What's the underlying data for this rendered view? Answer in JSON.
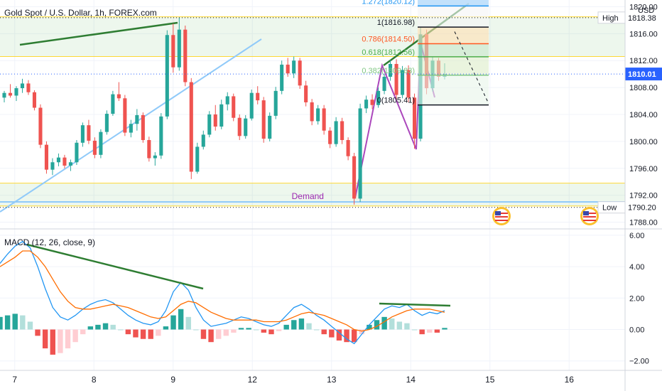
{
  "header": {
    "title": "Gold Spot / U.S. Dollar, 1h, FOREX.com"
  },
  "chart_data": [
    {
      "type": "candlestick",
      "title": "Gold Spot / U.S. Dollar, 1h, FOREX.com",
      "y_axis": {
        "ticks": [
          "1820.00",
          "1816.00",
          "1812.00",
          "1808.00",
          "1804.00",
          "1800.00",
          "1796.00",
          "1792.00",
          "1788.00"
        ],
        "tick_values": [
          1820,
          1816,
          1812,
          1808,
          1804,
          1800,
          1796,
          1792,
          1788
        ],
        "range": [
          1787,
          1821
        ],
        "currency_label": "USD"
      },
      "x_axis": {
        "labels": [
          "7",
          "8",
          "9",
          "12",
          "13",
          "14",
          "15",
          "16"
        ],
        "positions": [
          0.5,
          1.5,
          2.5,
          3.5,
          4.5,
          5.5,
          6.5,
          7.5
        ]
      },
      "price_labels": [
        {
          "name": "High",
          "value": "1818.38",
          "y": 1818.38
        },
        {
          "name": "",
          "value": "1810.01",
          "y": 1810.01,
          "current": true
        },
        {
          "name": "Low",
          "value": "1790.20",
          "y": 1790.2
        }
      ],
      "fibonacci": [
        {
          "level": "1.272",
          "price": 1820.12,
          "label": "1.272(1820.12)",
          "color": "#2196f3"
        },
        {
          "level": "1",
          "price": 1816.98,
          "label": "1(1816.98)",
          "color": "#131722"
        },
        {
          "level": "0.786",
          "price": 1814.5,
          "label": "0.786(1814.50)",
          "color": "#ff5722"
        },
        {
          "level": "0.618",
          "price": 1812.56,
          "label": "0.618(1812.56)",
          "color": "#4caf50"
        },
        {
          "level": "0.382",
          "price": 1809.83,
          "label": "0.382(1809.83)",
          "color": "#81c784"
        },
        {
          "level": "0",
          "price": 1805.41,
          "label": "0(1805.41)",
          "color": "#131722"
        }
      ],
      "zones": [
        {
          "name": "",
          "top": 1818.5,
          "bottom": 1812.6,
          "color": "#4caf50"
        },
        {
          "name": "Demand",
          "top": 1793.8,
          "bottom": 1790.4,
          "color": "#4caf50"
        }
      ],
      "annotations": [
        {
          "text": "Demand",
          "x": 4.2,
          "y": 1791.2,
          "color": "#9c27b0"
        }
      ],
      "candles_ohlc": [
        [
          1806.5,
          1807.5,
          1805.8,
          1807.2
        ],
        [
          1807.2,
          1808.5,
          1806.5,
          1806.8
        ],
        [
          1806.8,
          1808.2,
          1806.0,
          1807.9
        ],
        [
          1807.9,
          1809.3,
          1807.2,
          1808.6
        ],
        [
          1808.6,
          1809.1,
          1806.9,
          1807.3
        ],
        [
          1807.3,
          1807.6,
          1804.6,
          1805.0
        ],
        [
          1805.0,
          1805.5,
          1799.0,
          1799.5
        ],
        [
          1799.5,
          1800.0,
          1795.2,
          1795.8
        ],
        [
          1795.8,
          1797.5,
          1795.0,
          1796.9
        ],
        [
          1796.9,
          1798.2,
          1796.3,
          1797.6
        ],
        [
          1797.6,
          1798.0,
          1796.0,
          1796.4
        ],
        [
          1796.4,
          1797.3,
          1795.6,
          1796.9
        ],
        [
          1796.9,
          1800.2,
          1796.5,
          1799.8
        ],
        [
          1799.8,
          1802.8,
          1799.2,
          1802.4
        ],
        [
          1802.4,
          1803.2,
          1799.6,
          1800.1
        ],
        [
          1800.1,
          1800.6,
          1797.5,
          1798.0
        ],
        [
          1798.0,
          1801.8,
          1797.5,
          1801.4
        ],
        [
          1801.4,
          1804.6,
          1801.0,
          1804.1
        ],
        [
          1804.1,
          1807.5,
          1803.8,
          1807.0
        ],
        [
          1807.0,
          1808.8,
          1806.0,
          1806.4
        ],
        [
          1806.4,
          1806.9,
          1800.8,
          1801.3
        ],
        [
          1801.3,
          1803.2,
          1800.6,
          1802.6
        ],
        [
          1802.6,
          1804.8,
          1801.6,
          1803.9
        ],
        [
          1803.9,
          1804.3,
          1799.8,
          1800.2
        ],
        [
          1800.2,
          1800.7,
          1797.0,
          1797.5
        ],
        [
          1797.5,
          1798.4,
          1796.4,
          1797.9
        ],
        [
          1797.9,
          1804.2,
          1797.4,
          1803.7
        ],
        [
          1803.7,
          1816.5,
          1803.3,
          1815.8
        ],
        [
          1815.8,
          1817.5,
          1810.2,
          1811.0
        ],
        [
          1811.0,
          1818.4,
          1810.5,
          1816.6
        ],
        [
          1816.6,
          1817.2,
          1808.2,
          1808.8
        ],
        [
          1808.8,
          1809.4,
          1794.4,
          1795.5
        ],
        [
          1795.5,
          1799.8,
          1795.2,
          1799.2
        ],
        [
          1799.2,
          1801.6,
          1798.8,
          1801.0
        ],
        [
          1801.0,
          1804.5,
          1800.6,
          1804.0
        ],
        [
          1804.0,
          1805.4,
          1801.6,
          1802.2
        ],
        [
          1802.2,
          1806.2,
          1801.8,
          1805.5
        ],
        [
          1805.5,
          1807.3,
          1804.6,
          1806.7
        ],
        [
          1806.7,
          1807.1,
          1803.0,
          1803.5
        ],
        [
          1803.5,
          1804.0,
          1800.2,
          1800.8
        ],
        [
          1800.8,
          1803.9,
          1800.4,
          1803.4
        ],
        [
          1803.4,
          1807.7,
          1803.1,
          1807.2
        ],
        [
          1807.2,
          1808.2,
          1805.5,
          1806.1
        ],
        [
          1806.1,
          1806.6,
          1799.8,
          1800.4
        ],
        [
          1800.4,
          1804.3,
          1800.0,
          1803.8
        ],
        [
          1803.8,
          1808.1,
          1803.3,
          1807.5
        ],
        [
          1807.5,
          1812.0,
          1807.0,
          1811.4
        ],
        [
          1811.4,
          1812.4,
          1809.6,
          1810.1
        ],
        [
          1810.1,
          1812.6,
          1809.4,
          1812.0
        ],
        [
          1812.0,
          1812.4,
          1807.8,
          1808.3
        ],
        [
          1808.3,
          1809.0,
          1805.2,
          1805.8
        ],
        [
          1805.8,
          1806.3,
          1802.4,
          1803.0
        ],
        [
          1803.0,
          1805.4,
          1802.5,
          1804.9
        ],
        [
          1804.9,
          1805.4,
          1801.0,
          1801.6
        ],
        [
          1801.6,
          1802.1,
          1799.0,
          1799.6
        ],
        [
          1799.6,
          1803.6,
          1799.2,
          1803.0
        ],
        [
          1803.0,
          1803.5,
          1799.6,
          1800.2
        ],
        [
          1800.2,
          1800.6,
          1797.2,
          1797.8
        ],
        [
          1797.8,
          1798.3,
          1790.6,
          1791.5
        ],
        [
          1791.5,
          1805.6,
          1791.0,
          1804.9
        ],
        [
          1804.9,
          1806.8,
          1804.2,
          1806.2
        ],
        [
          1806.2,
          1807.0,
          1804.8,
          1805.4
        ],
        [
          1805.4,
          1808.0,
          1805.0,
          1807.5
        ],
        [
          1807.5,
          1810.0,
          1807.0,
          1809.6
        ],
        [
          1809.6,
          1812.1,
          1809.0,
          1811.5
        ],
        [
          1811.5,
          1812.2,
          1806.2,
          1806.9
        ],
        [
          1806.9,
          1811.2,
          1806.4,
          1810.6
        ],
        [
          1810.6,
          1811.3,
          1805.8,
          1806.5
        ],
        [
          1806.5,
          1807.1,
          1798.9,
          1800.4
        ],
        [
          1800.4,
          1816.9,
          1800.0,
          1815.9
        ],
        [
          1815.9,
          1816.6,
          1807.0,
          1807.9
        ],
        [
          1807.9,
          1812.6,
          1807.4,
          1812.0
        ],
        [
          1812.0,
          1812.4,
          1809.0,
          1809.6
        ],
        [
          1809.6,
          1811.6,
          1809.2,
          1810.0
        ]
      ]
    },
    {
      "type": "line",
      "title": "MACD (12, 26, close, 9)",
      "y_axis": {
        "ticks": [
          "6.00",
          "4.00",
          "2.00",
          "0.00",
          "−2.00"
        ],
        "tick_values": [
          6,
          4,
          2,
          0,
          -2
        ],
        "range": [
          -2.6,
          6.4
        ]
      },
      "series": [
        {
          "name": "",
          "color": "#2196f3",
          "values": [
            4.2,
            4.8,
            5.3,
            5.6,
            5.2,
            4.0,
            2.6,
            1.4,
            0.8,
            0.6,
            0.9,
            1.3,
            1.6,
            1.8,
            1.9,
            1.7,
            1.3,
            0.9,
            0.6,
            0.4,
            0.3,
            0.5,
            1.2,
            2.4,
            3.0,
            2.5,
            1.4,
            0.6,
            0.2,
            0.3,
            0.4,
            0.6,
            0.8,
            0.7,
            0.5,
            0.3,
            0.2,
            0.4,
            0.9,
            1.4,
            1.6,
            1.3,
            0.9,
            0.6,
            0.2,
            -0.2,
            -0.6,
            -0.9,
            -0.3,
            0.3,
            0.8,
            1.3,
            1.5,
            1.4,
            1.6,
            1.2,
            0.9,
            1.1,
            1.0,
            1.2
          ]
        },
        {
          "name": "",
          "color": "#ff6d00",
          "values": [
            4.0,
            4.3,
            4.6,
            5.0,
            5.0,
            4.6,
            4.0,
            3.2,
            2.4,
            1.8,
            1.4,
            1.3,
            1.3,
            1.4,
            1.5,
            1.6,
            1.5,
            1.4,
            1.2,
            1.0,
            0.8,
            0.7,
            0.8,
            1.2,
            1.6,
            1.8,
            1.7,
            1.4,
            1.1,
            0.9,
            0.7,
            0.6,
            0.6,
            0.6,
            0.6,
            0.5,
            0.5,
            0.5,
            0.6,
            0.8,
            1.0,
            1.1,
            1.0,
            0.9,
            0.7,
            0.5,
            0.3,
            0.0,
            -0.1,
            0.0,
            0.2,
            0.5,
            0.8,
            1.0,
            1.2,
            1.3,
            1.3,
            1.3,
            1.2,
            1.1
          ]
        },
        {
          "name": "",
          "type": "histogram",
          "values": [
            0.8,
            0.9,
            1.0,
            0.9,
            0.5,
            -0.4,
            -1.2,
            -1.6,
            -1.5,
            -1.2,
            -0.8,
            -0.3,
            0.2,
            0.3,
            0.4,
            0.3,
            0.0,
            -0.3,
            -0.5,
            -0.6,
            -0.6,
            -0.4,
            0.2,
            0.9,
            1.3,
            0.8,
            0.0,
            -0.6,
            -0.8,
            -0.6,
            -0.4,
            -0.2,
            0.1,
            0.1,
            0.0,
            -0.2,
            -0.3,
            -0.1,
            0.3,
            0.6,
            0.7,
            0.4,
            0.0,
            -0.3,
            -0.5,
            -0.7,
            -0.8,
            -0.8,
            -0.3,
            0.3,
            0.6,
            0.8,
            0.7,
            0.5,
            0.4,
            0.0,
            -0.3,
            -0.2,
            -0.2,
            0.1
          ]
        }
      ]
    }
  ]
}
